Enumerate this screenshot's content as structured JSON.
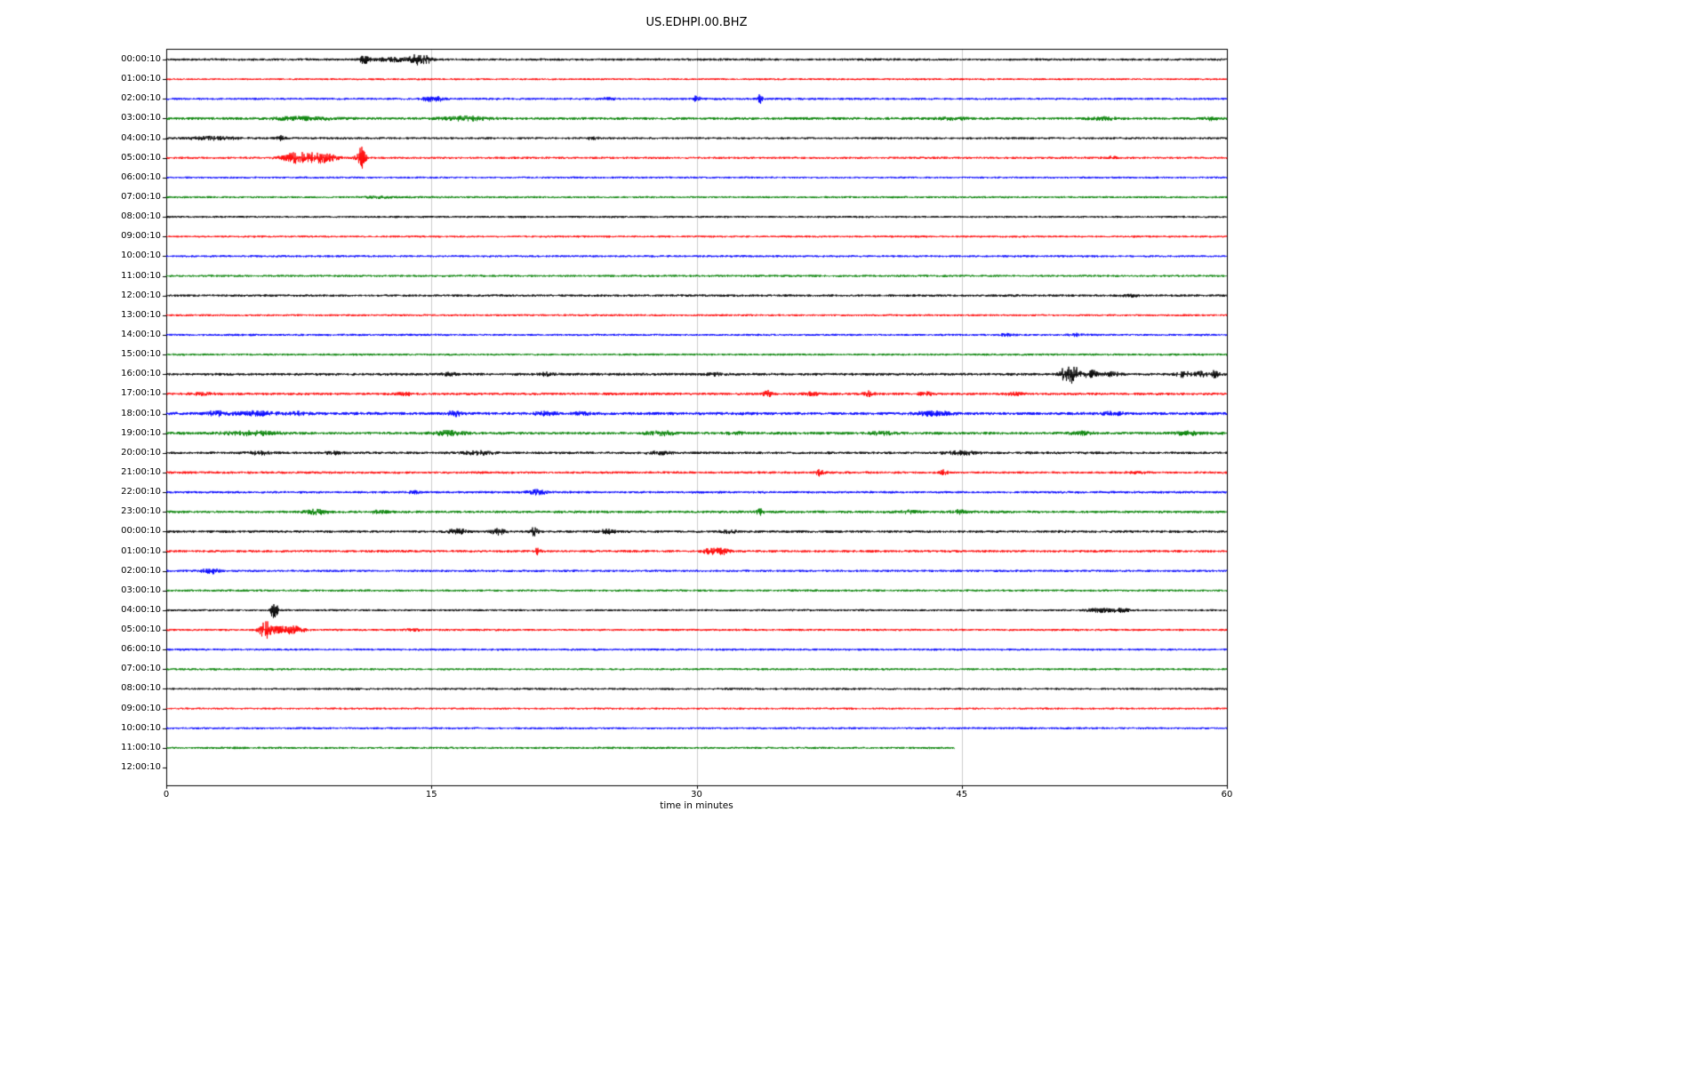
{
  "chart_data": {
    "type": "line",
    "title": "US.EDHPI.00.BHZ",
    "xlabel": "time in minutes",
    "x_range": [
      0,
      60
    ],
    "x_ticks": [
      0,
      15,
      30,
      45,
      60
    ],
    "grid": "vertical gridlines at 15, 30, 45",
    "legend": "none",
    "trace_colors": {
      "black": "#000000",
      "red": "#ff0000",
      "blue": "#0000ff",
      "green": "#008000"
    },
    "rows": [
      {
        "label": "00:00:10",
        "color": "black",
        "noise": 1.1,
        "end": 60,
        "events": [
          {
            "t": 11.2,
            "a": 4,
            "w": 0.2
          },
          {
            "t": 12.8,
            "a": 2,
            "w": 0.6
          },
          {
            "t": 14.2,
            "a": 5,
            "w": 0.3
          },
          {
            "t": 14.8,
            "a": 3,
            "w": 0.2
          }
        ]
      },
      {
        "label": "01:00:10",
        "color": "red",
        "noise": 0.9,
        "end": 60,
        "events": []
      },
      {
        "label": "02:00:10",
        "color": "blue",
        "noise": 1.0,
        "end": 60,
        "events": [
          {
            "t": 14.9,
            "a": 2.5,
            "w": 0.3
          },
          {
            "t": 15.4,
            "a": 2,
            "w": 0.2
          },
          {
            "t": 25,
            "a": 1,
            "w": 0.3
          },
          {
            "t": 30,
            "a": 3.5,
            "w": 0.12
          },
          {
            "t": 33.6,
            "a": 4.5,
            "w": 0.1
          }
        ]
      },
      {
        "label": "03:00:10",
        "color": "green",
        "noise": 1.3,
        "end": 60,
        "events": [
          {
            "t": 7.5,
            "a": 1.5,
            "w": 1.2
          },
          {
            "t": 17,
            "a": 2,
            "w": 0.8
          },
          {
            "t": 44.5,
            "a": 1,
            "w": 0.5
          },
          {
            "t": 53,
            "a": 1.2,
            "w": 0.6
          },
          {
            "t": 59,
            "a": 1.5,
            "w": 0.3
          }
        ]
      },
      {
        "label": "04:00:10",
        "color": "black",
        "noise": 1.0,
        "end": 60,
        "events": [
          {
            "t": 2.7,
            "a": 1.8,
            "w": 1.0
          },
          {
            "t": 6.5,
            "a": 2.5,
            "w": 0.15
          },
          {
            "t": 24,
            "a": 1,
            "w": 0.4
          }
        ]
      },
      {
        "label": "05:00:10",
        "color": "red",
        "noise": 1.0,
        "end": 60,
        "events": [
          {
            "t": 7.2,
            "a": 3,
            "w": 0.5
          },
          {
            "t": 8,
            "a": 4,
            "w": 0.8
          },
          {
            "t": 9,
            "a": 3,
            "w": 0.5
          },
          {
            "t": 11,
            "a": 13,
            "w": 0.18
          },
          {
            "t": 53.5,
            "a": 1.5,
            "w": 0.2
          }
        ]
      },
      {
        "label": "06:00:10",
        "color": "blue",
        "noise": 0.9,
        "end": 60,
        "events": []
      },
      {
        "label": "07:00:10",
        "color": "green",
        "noise": 1.0,
        "end": 60,
        "events": [
          {
            "t": 12,
            "a": 0.8,
            "w": 0.5
          }
        ]
      },
      {
        "label": "08:00:10",
        "color": "black",
        "noise": 0.95,
        "end": 60,
        "events": []
      },
      {
        "label": "09:00:10",
        "color": "red",
        "noise": 0.9,
        "end": 60,
        "events": []
      },
      {
        "label": "10:00:10",
        "color": "blue",
        "noise": 0.95,
        "end": 60,
        "events": []
      },
      {
        "label": "11:00:10",
        "color": "green",
        "noise": 1.0,
        "end": 60,
        "events": [
          {
            "t": 41.5,
            "a": 1.2,
            "w": 0.15
          }
        ]
      },
      {
        "label": "12:00:10",
        "color": "black",
        "noise": 1.1,
        "end": 60,
        "events": [
          {
            "t": 54.5,
            "a": 1,
            "w": 0.3
          }
        ]
      },
      {
        "label": "13:00:10",
        "color": "red",
        "noise": 0.95,
        "end": 60,
        "events": []
      },
      {
        "label": "14:00:10",
        "color": "blue",
        "noise": 1.0,
        "end": 60,
        "events": [
          {
            "t": 47.5,
            "a": 1.2,
            "w": 0.3
          },
          {
            "t": 51.5,
            "a": 1.2,
            "w": 0.3
          }
        ]
      },
      {
        "label": "15:00:10",
        "color": "green",
        "noise": 1.0,
        "end": 60,
        "events": []
      },
      {
        "label": "16:00:10",
        "color": "black",
        "noise": 1.25,
        "end": 60,
        "events": [
          {
            "t": 16,
            "a": 1.5,
            "w": 0.3
          },
          {
            "t": 21.5,
            "a": 1.5,
            "w": 0.3
          },
          {
            "t": 31,
            "a": 1.2,
            "w": 0.4
          },
          {
            "t": 50.8,
            "a": 6,
            "w": 0.2
          },
          {
            "t": 51.3,
            "a": 9,
            "w": 0.25
          },
          {
            "t": 52.3,
            "a": 4,
            "w": 0.3
          },
          {
            "t": 53.5,
            "a": 2,
            "w": 0.3
          },
          {
            "t": 57.5,
            "a": 3,
            "w": 0.3
          },
          {
            "t": 58.5,
            "a": 2.5,
            "w": 0.3
          },
          {
            "t": 59.3,
            "a": 3,
            "w": 0.2
          }
        ]
      },
      {
        "label": "17:00:10",
        "color": "red",
        "noise": 1.2,
        "end": 60,
        "events": [
          {
            "t": 2,
            "a": 1,
            "w": 0.5
          },
          {
            "t": 13.5,
            "a": 1.5,
            "w": 0.3
          },
          {
            "t": 34,
            "a": 3.5,
            "w": 0.15
          },
          {
            "t": 36.5,
            "a": 1.5,
            "w": 0.3
          },
          {
            "t": 39.7,
            "a": 2.5,
            "w": 0.2
          },
          {
            "t": 43,
            "a": 1.5,
            "w": 0.3
          },
          {
            "t": 48,
            "a": 1.2,
            "w": 0.4
          }
        ]
      },
      {
        "label": "18:00:10",
        "color": "blue",
        "noise": 1.4,
        "end": 60,
        "events": [
          {
            "t": 2.8,
            "a": 2.5,
            "w": 0.3
          },
          {
            "t": 5,
            "a": 2,
            "w": 0.8
          },
          {
            "t": 7.5,
            "a": 1.5,
            "w": 0.4
          },
          {
            "t": 16.3,
            "a": 2.5,
            "w": 0.3
          },
          {
            "t": 21.5,
            "a": 1.8,
            "w": 0.4
          },
          {
            "t": 23.5,
            "a": 1.5,
            "w": 0.3
          },
          {
            "t": 43.5,
            "a": 1.8,
            "w": 0.8
          },
          {
            "t": 53.5,
            "a": 1.5,
            "w": 0.5
          }
        ]
      },
      {
        "label": "19:00:10",
        "color": "green",
        "noise": 1.3,
        "end": 60,
        "events": [
          {
            "t": 4.8,
            "a": 2,
            "w": 1.0
          },
          {
            "t": 16,
            "a": 2.2,
            "w": 0.6
          },
          {
            "t": 28,
            "a": 2.2,
            "w": 0.5
          },
          {
            "t": 32.2,
            "a": 1.5,
            "w": 0.3
          },
          {
            "t": 40.5,
            "a": 1.5,
            "w": 0.5
          },
          {
            "t": 51.8,
            "a": 1.5,
            "w": 0.4
          },
          {
            "t": 57.8,
            "a": 1.8,
            "w": 0.5
          }
        ]
      },
      {
        "label": "20:00:10",
        "color": "black",
        "noise": 1.2,
        "end": 60,
        "events": [
          {
            "t": 5.3,
            "a": 1.5,
            "w": 0.5
          },
          {
            "t": 9.5,
            "a": 1.2,
            "w": 0.4
          },
          {
            "t": 17.7,
            "a": 1.8,
            "w": 0.6
          },
          {
            "t": 28,
            "a": 1.3,
            "w": 0.5
          },
          {
            "t": 45,
            "a": 1.8,
            "w": 0.6
          }
        ]
      },
      {
        "label": "21:00:10",
        "color": "red",
        "noise": 1.1,
        "end": 60,
        "events": [
          {
            "t": 37,
            "a": 3.5,
            "w": 0.15
          },
          {
            "t": 44,
            "a": 3,
            "w": 0.15
          },
          {
            "t": 55,
            "a": 1,
            "w": 0.3
          }
        ]
      },
      {
        "label": "22:00:10",
        "color": "blue",
        "noise": 1.1,
        "end": 60,
        "events": [
          {
            "t": 14,
            "a": 1.2,
            "w": 0.3
          },
          {
            "t": 21,
            "a": 2.2,
            "w": 0.4
          }
        ]
      },
      {
        "label": "23:00:10",
        "color": "green",
        "noise": 1.2,
        "end": 60,
        "events": [
          {
            "t": 8.5,
            "a": 2.5,
            "w": 0.4
          },
          {
            "t": 12,
            "a": 1.3,
            "w": 0.4
          },
          {
            "t": 33.6,
            "a": 3,
            "w": 0.15
          },
          {
            "t": 42,
            "a": 1.5,
            "w": 0.4
          },
          {
            "t": 44.8,
            "a": 1.8,
            "w": 0.3
          }
        ]
      },
      {
        "label": "00:00:10",
        "color": "black",
        "noise": 1.2,
        "end": 60,
        "events": [
          {
            "t": 16.5,
            "a": 2.5,
            "w": 0.4
          },
          {
            "t": 18.8,
            "a": 3,
            "w": 0.3
          },
          {
            "t": 20.8,
            "a": 4.5,
            "w": 0.15
          },
          {
            "t": 25,
            "a": 2.5,
            "w": 0.3
          },
          {
            "t": 31.8,
            "a": 1.5,
            "w": 0.3
          }
        ]
      },
      {
        "label": "01:00:10",
        "color": "red",
        "noise": 1.15,
        "end": 60,
        "events": [
          {
            "t": 21,
            "a": 3.5,
            "w": 0.12
          },
          {
            "t": 30.8,
            "a": 3,
            "w": 0.3
          },
          {
            "t": 31.5,
            "a": 3,
            "w": 0.25
          }
        ]
      },
      {
        "label": "02:00:10",
        "color": "blue",
        "noise": 1.0,
        "end": 60,
        "events": [
          {
            "t": 2.5,
            "a": 3,
            "w": 0.35
          }
        ]
      },
      {
        "label": "03:00:10",
        "color": "green",
        "noise": 1.0,
        "end": 60,
        "events": []
      },
      {
        "label": "04:00:10",
        "color": "black",
        "noise": 1.0,
        "end": 60,
        "events": [
          {
            "t": 6.1,
            "a": 9,
            "w": 0.15
          },
          {
            "t": 52.8,
            "a": 2,
            "w": 0.5
          },
          {
            "t": 54,
            "a": 1.8,
            "w": 0.4
          }
        ]
      },
      {
        "label": "05:00:10",
        "color": "red",
        "noise": 1.0,
        "end": 60,
        "events": [
          {
            "t": 5.6,
            "a": 9,
            "w": 0.25
          },
          {
            "t": 6.5,
            "a": 3.5,
            "w": 0.5
          },
          {
            "t": 7.3,
            "a": 2.5,
            "w": 0.4
          },
          {
            "t": 14,
            "a": 1.2,
            "w": 0.3
          }
        ]
      },
      {
        "label": "06:00:10",
        "color": "blue",
        "noise": 0.95,
        "end": 60,
        "events": []
      },
      {
        "label": "07:00:10",
        "color": "green",
        "noise": 1.0,
        "end": 60,
        "events": []
      },
      {
        "label": "08:00:10",
        "color": "black",
        "noise": 0.95,
        "end": 60,
        "events": []
      },
      {
        "label": "09:00:10",
        "color": "red",
        "noise": 0.9,
        "end": 60,
        "events": []
      },
      {
        "label": "10:00:10",
        "color": "blue",
        "noise": 0.95,
        "end": 60,
        "events": []
      },
      {
        "label": "11:00:10",
        "color": "green",
        "noise": 1.0,
        "end": 44.6,
        "events": []
      },
      {
        "label": "12:00:10",
        "color": "black",
        "noise": 0,
        "end": 0,
        "events": []
      }
    ]
  }
}
